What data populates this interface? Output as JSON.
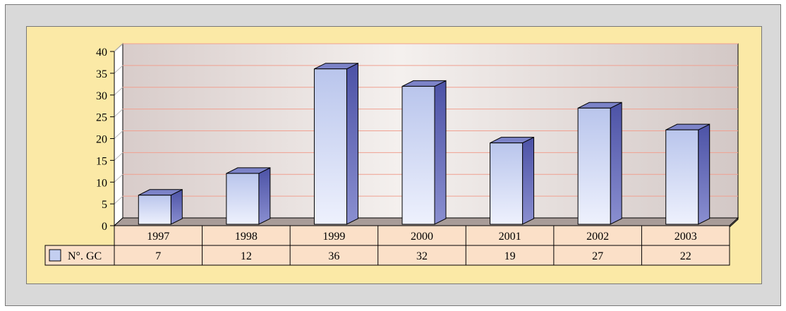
{
  "chart_data": {
    "type": "bar",
    "categories": [
      "1997",
      "1998",
      "1999",
      "2000",
      "2001",
      "2002",
      "2003"
    ],
    "series": [
      {
        "name": "N°. GC",
        "values": [
          7,
          12,
          36,
          32,
          19,
          27,
          22
        ]
      }
    ],
    "title": "",
    "xlabel": "",
    "ylabel": "",
    "ylim": [
      0,
      40
    ],
    "yticks": [
      0,
      5,
      10,
      15,
      20,
      25,
      30,
      35,
      40
    ],
    "grid": true,
    "legend": "data-table-left",
    "colors": {
      "bar_front": "#c3cef0",
      "bar_side": "#5a5fb0",
      "bar_top": "#7c83c8",
      "gridline": "#f0a090",
      "table_bg": "#fbe0c8",
      "panel_bg": "#fbe9a6",
      "frame_bg": "#d9d9d9"
    }
  }
}
